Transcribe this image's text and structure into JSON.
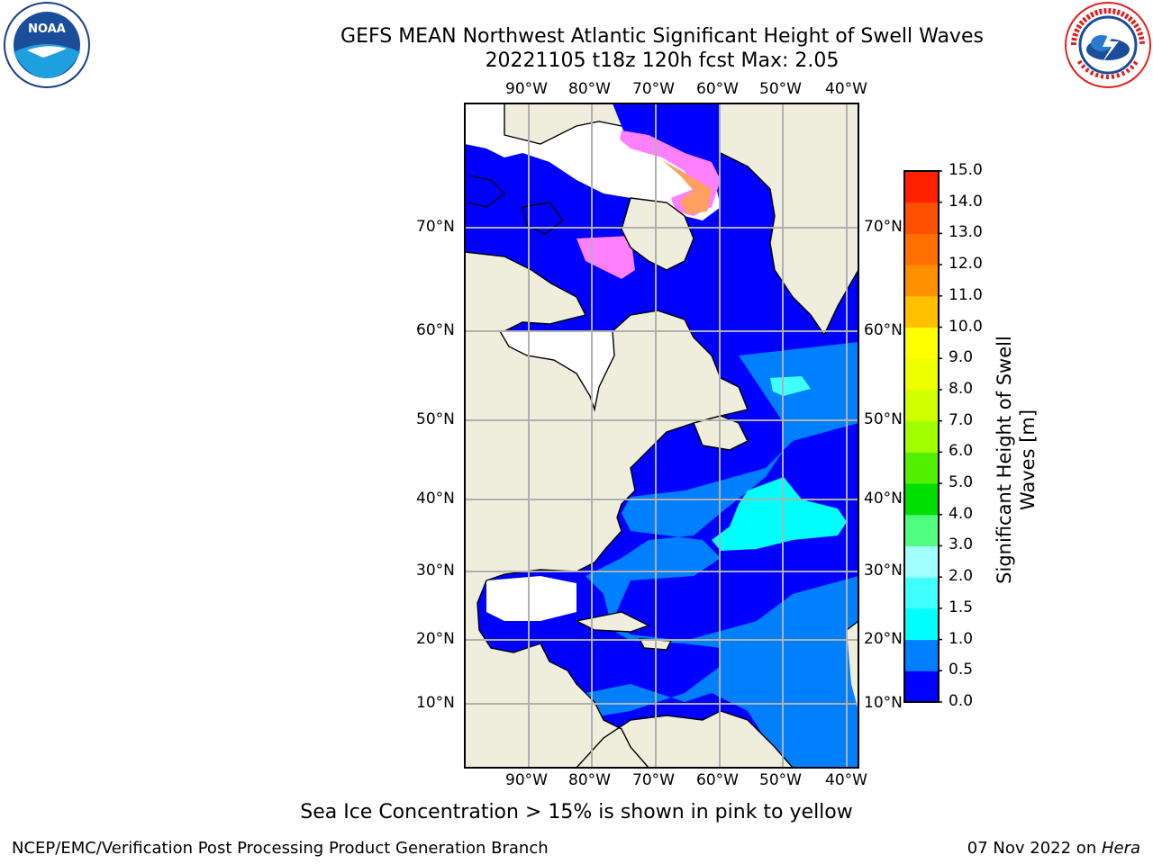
{
  "title": "GEFS MEAN Northwest Atlantic Significant Height of Swell Waves",
  "subtitle": "20221105 t18z 120h fcst   Max: 2.05",
  "caption": "Sea Ice Concentration > 15% is shown in pink to yellow",
  "footer": {
    "left": "NCEP/EMC/Verification Post Processing Product Generation Branch",
    "right_date": "07 Nov 2022 on ",
    "right_host": "Hera"
  },
  "logos": {
    "left": "NOAA",
    "right": "NATIONAL WEATHER SERVICE"
  },
  "map": {
    "lon_labels": [
      "90°W",
      "80°W",
      "70°W",
      "60°W",
      "50°W",
      "40°W"
    ],
    "lat_labels": [
      "70°N",
      "60°N",
      "50°N",
      "40°N",
      "30°N",
      "20°N",
      "10°N"
    ],
    "colors": {
      "land": "#efeddc",
      "ice_free_white": "#ffffff",
      "grid": "#b0b0b0"
    }
  },
  "colorbar": {
    "label": "Significant Height of Swell Waves [m]",
    "ticks": [
      "15.0",
      "14.0",
      "13.0",
      "12.0",
      "11.0",
      "10.0",
      "9.0",
      "8.0",
      "7.0",
      "6.0",
      "5.0",
      "4.0",
      "3.0",
      "2.0",
      "1.5",
      "1.0",
      "0.5",
      "0.0"
    ],
    "colors": [
      "#0000ff",
      "#0080ff",
      "#00ffff",
      "#40ffff",
      "#a0ffff",
      "#50ff80",
      "#00e000",
      "#50f000",
      "#a0ff00",
      "#d0ff00",
      "#f0ff00",
      "#ffff00",
      "#ffc000",
      "#ff9000",
      "#ff7000",
      "#ff5000",
      "#ff2000"
    ]
  }
}
